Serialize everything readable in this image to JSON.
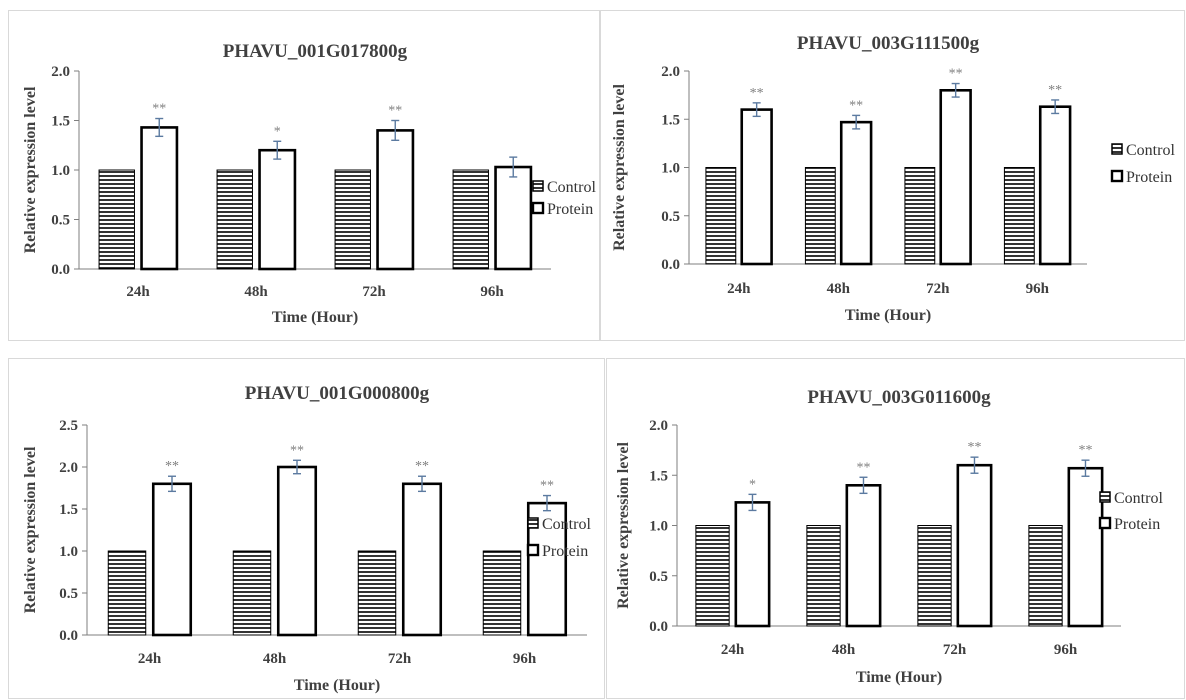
{
  "colors": {
    "axis": "#7f7f7f",
    "bar_stroke": "#000000",
    "hatch": "#000000",
    "error_bar": "#5b7aa0",
    "text": "#404040",
    "significance": "#7f7f7f"
  },
  "legend": {
    "control": "Control",
    "protein": "Protein"
  },
  "chart_data": [
    {
      "type": "bar",
      "title": "PHAVU_001G017800g",
      "xlabel": "Time (Hour)",
      "ylabel": "Relative expression level",
      "categories": [
        "24h",
        "48h",
        "72h",
        "96h"
      ],
      "ylim": [
        0,
        2.0
      ],
      "yticks": [
        "0.0",
        "0.5",
        "1.0",
        "1.5",
        "2.0"
      ],
      "series": [
        {
          "name": "Control",
          "values": [
            1.0,
            1.0,
            1.0,
            1.0
          ]
        },
        {
          "name": "Protein",
          "values": [
            1.43,
            1.2,
            1.4,
            1.03
          ],
          "errors": [
            0.09,
            0.09,
            0.1,
            0.1
          ],
          "significance": [
            "**",
            "*",
            "**",
            ""
          ]
        }
      ],
      "legend_position": "right"
    },
    {
      "type": "bar",
      "title": "PHAVU_003G111500g",
      "xlabel": "Time (Hour)",
      "ylabel": "Relative expression level",
      "categories": [
        "24h",
        "48h",
        "72h",
        "96h"
      ],
      "ylim": [
        0,
        2.0
      ],
      "yticks": [
        "0.0",
        "0.5",
        "1.0",
        "1.5",
        "2.0"
      ],
      "series": [
        {
          "name": "Control",
          "values": [
            1.0,
            1.0,
            1.0,
            1.0
          ]
        },
        {
          "name": "Protein",
          "values": [
            1.6,
            1.47,
            1.8,
            1.63
          ],
          "errors": [
            0.07,
            0.07,
            0.07,
            0.07
          ],
          "significance": [
            "**",
            "**",
            "**",
            "**"
          ]
        }
      ],
      "legend_position": "right"
    },
    {
      "type": "bar",
      "title": "PHAVU_001G000800g",
      "xlabel": "Time (Hour)",
      "ylabel": "Relative expression level",
      "categories": [
        "24h",
        "48h",
        "72h",
        "96h"
      ],
      "ylim": [
        0,
        2.5
      ],
      "yticks": [
        "0.0",
        "0.5",
        "1.0",
        "1.5",
        "2.0",
        "2.5"
      ],
      "series": [
        {
          "name": "Control",
          "values": [
            1.0,
            1.0,
            1.0,
            1.0
          ]
        },
        {
          "name": "Protein",
          "values": [
            1.8,
            2.0,
            1.8,
            1.57
          ],
          "errors": [
            0.09,
            0.08,
            0.09,
            0.09
          ],
          "significance": [
            "**",
            "**",
            "**",
            "**"
          ]
        }
      ],
      "legend_position": "right"
    },
    {
      "type": "bar",
      "title": "PHAVU_003G011600g",
      "xlabel": "Time (Hour)",
      "ylabel": "Relative expression level",
      "categories": [
        "24h",
        "48h",
        "72h",
        "96h"
      ],
      "ylim": [
        0,
        2.0
      ],
      "yticks": [
        "0.0",
        "0.5",
        "1.0",
        "1.5",
        "2.0"
      ],
      "series": [
        {
          "name": "Control",
          "values": [
            1.0,
            1.0,
            1.0,
            1.0
          ]
        },
        {
          "name": "Protein",
          "values": [
            1.23,
            1.4,
            1.6,
            1.57
          ],
          "errors": [
            0.08,
            0.08,
            0.08,
            0.08
          ],
          "significance": [
            "*",
            "**",
            "**",
            "**"
          ]
        }
      ],
      "legend_position": "right"
    }
  ]
}
